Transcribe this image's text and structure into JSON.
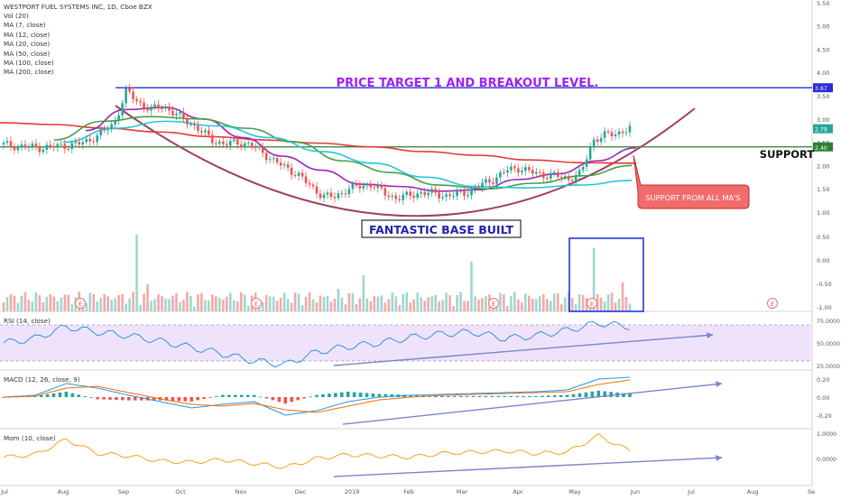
{
  "header": {
    "symbol_line": "WESTPORT FUEL SYSTEMS INC, 1D, Cboe BZX",
    "indicators": [
      "Vol (20)",
      "MA (7, close)",
      "MA (12, close)",
      "MA (20, close)",
      "MA (50, close)",
      "MA (100, close)",
      "MA (200, close)"
    ]
  },
  "panes": {
    "rsi_label": "RSI (14, close)",
    "macd_label": "MACD (12, 26, close, 9)",
    "mom_label": "Mom (10, close)"
  },
  "annotations": {
    "price_target": "PRICE TARGET 1 AND BREAKOUT LEVEL.",
    "base": "FANTASTIC BASE BUILT",
    "support": "SUPPORT",
    "support_mas": "SUPPORT FROM ALL MA'S"
  },
  "price_tags": {
    "target": "3.67",
    "last": "2.79",
    "support": "2.40"
  },
  "colors": {
    "price_target_text": "#a020f0",
    "target_line": "#2b2bd8",
    "support_line": "#2e7d32",
    "candle_up": "#26a69a",
    "candle_down": "#ef5350",
    "ma_purple": "#9c27b0",
    "ma_green": "#43a047",
    "ma_teal": "#26c6da",
    "ma_red": "#e53935",
    "rsi_band": "#efe3fb",
    "macd_line": "#2196f3",
    "signal_line": "#ff6d00",
    "mom_line": "#ff9800",
    "arc": "#a04060",
    "trend_arrow": "#7986cb"
  },
  "chart_data": [
    {
      "type": "line",
      "title": "WESTPORT FUEL SYSTEMS INC, 1D, Cboe BZX",
      "x_ticks": [
        "Jul",
        "Aug",
        "Sep",
        "Oct",
        "Nov",
        "Dec",
        "2019",
        "Feb",
        "Mar",
        "Apr",
        "May",
        "Jun",
        "Jul",
        "Aug",
        "Se"
      ],
      "y_ticks": [
        "1.00",
        "1.50",
        "2.00",
        "2.50",
        "3.00",
        "3.50",
        "4.00",
        "4.50",
        "5.00",
        "5.50"
      ],
      "ylim": [
        1.0,
        5.5
      ],
      "series": [
        {
          "values": [
            2.45,
            2.42,
            2.4,
            2.38,
            2.4,
            2.43,
            2.45,
            2.55,
            2.7,
            2.9,
            3.6,
            3.35,
            3.2,
            3.28,
            3.1,
            2.95,
            2.75,
            2.55,
            2.45,
            2.5,
            2.45,
            2.3,
            2.1,
            1.95,
            1.8,
            1.55,
            1.35,
            1.32,
            1.5,
            1.55,
            1.6,
            1.4,
            1.3,
            1.35,
            1.42,
            1.4,
            1.35,
            1.38,
            1.45,
            1.6,
            1.72,
            1.9,
            1.95,
            1.85,
            1.8,
            1.78,
            1.72,
            1.82,
            2.55,
            2.65,
            2.7,
            2.79
          ]
        },
        {
          "name": "MA (200, close)",
          "values": [
            2.92,
            2.88,
            2.8,
            2.72,
            2.62,
            2.55,
            2.48,
            2.4,
            2.3,
            2.22,
            2.12,
            2.06,
            2.05
          ]
        },
        {
          "values": [
            2.75,
            3.2,
            3.25,
            3.0,
            2.6,
            2.2,
            1.9,
            1.6,
            1.55,
            1.45,
            1.48,
            1.7,
            1.82,
            2.1,
            2.38
          ]
        },
        {
          "values": [
            2.55,
            2.95,
            3.05,
            3.0,
            2.8,
            2.5,
            2.1,
            1.85,
            1.58,
            1.5,
            1.62,
            1.78,
            2.0
          ]
        },
        {
          "values": [
            2.5,
            2.8,
            2.95,
            2.85,
            2.6,
            2.3,
            2.05,
            1.75,
            1.55,
            1.52,
            1.58,
            1.68
          ]
        }
      ],
      "horizontal_levels": [
        3.67,
        2.4
      ]
    },
    {
      "type": "bar",
      "title": "Vol (20)",
      "y_ticks": [
        "0.50",
        "0.00",
        "-0.50",
        "-1.00"
      ]
    },
    {
      "type": "line",
      "title": "RSI (14, close)",
      "y_ticks": [
        "75.0000",
        "50.0000",
        "25.0000"
      ],
      "ylim": [
        20,
        80
      ],
      "bands": [
        30,
        70
      ],
      "x": [
        0,
        10,
        20,
        30,
        40,
        50,
        60,
        70,
        80,
        90,
        100,
        110,
        120,
        130,
        140,
        150,
        160,
        170,
        180,
        190,
        200
      ],
      "values": [
        50,
        55,
        68,
        62,
        58,
        52,
        45,
        38,
        30,
        26,
        40,
        46,
        50,
        56,
        60,
        62,
        55,
        58,
        64,
        72,
        68
      ]
    },
    {
      "type": "line",
      "title": "MACD (12, 26, close, 9)",
      "y_ticks": [
        "0.20",
        "0.00",
        "-0.20"
      ],
      "ylim": [
        -0.28,
        0.28
      ],
      "x": [
        0,
        10,
        20,
        30,
        40,
        50,
        60,
        70,
        80,
        90,
        100,
        110,
        120,
        130,
        140,
        150,
        160,
        170,
        180,
        190,
        200
      ],
      "macd": [
        0.0,
        0.02,
        0.15,
        0.1,
        0.02,
        -0.05,
        -0.12,
        -0.08,
        -0.05,
        -0.2,
        -0.15,
        -0.05,
        0.0,
        0.02,
        0.03,
        0.04,
        0.05,
        0.06,
        0.08,
        0.2,
        0.22
      ],
      "signal": [
        0.0,
        0.01,
        0.1,
        0.12,
        0.05,
        -0.02,
        -0.08,
        -0.1,
        -0.07,
        -0.14,
        -0.17,
        -0.1,
        -0.03,
        0.0,
        0.02,
        0.03,
        0.04,
        0.05,
        0.06,
        0.14,
        0.19
      ]
    },
    {
      "type": "line",
      "title": "Mom (10, close)",
      "y_ticks": [
        "1.0000",
        "0.0000"
      ],
      "ylim": [
        -0.5,
        1.2
      ],
      "x": [
        0,
        10,
        20,
        30,
        40,
        50,
        60,
        70,
        80,
        90,
        100,
        110,
        120,
        130,
        140,
        150,
        160,
        170,
        180,
        190,
        200
      ],
      "values": [
        0.05,
        0.15,
        0.75,
        0.2,
        0.1,
        -0.1,
        -0.15,
        -0.05,
        -0.2,
        -0.35,
        0.0,
        0.15,
        0.1,
        0.05,
        0.2,
        0.25,
        0.3,
        0.2,
        0.25,
        0.9,
        0.3
      ]
    }
  ]
}
